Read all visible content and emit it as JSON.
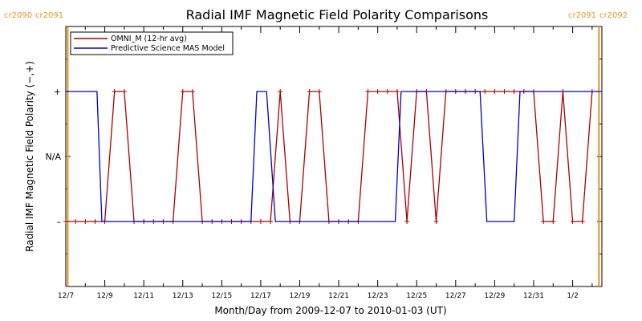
{
  "chart_data": {
    "type": "line",
    "title": "Radial IMF Magnetic Field Polarity Comparisons",
    "xlabel": "Month/Day from 2009-12-07 to 2010-01-03 (UT)",
    "ylabel": "Radial IMF Magnetic Field Polarity (−,+)",
    "xlim": [
      0,
      27.5
    ],
    "ylim": [
      -2,
      2
    ],
    "x_tick_values": [
      0,
      2,
      4,
      6,
      8,
      10,
      12,
      14,
      16,
      18,
      20,
      22,
      24,
      26
    ],
    "x_tick_labels": [
      "12/7",
      "12/9",
      "12/11",
      "12/13",
      "12/15",
      "12/17",
      "12/19",
      "12/21",
      "12/23",
      "12/25",
      "12/27",
      "12/29",
      "12/31",
      "1/2"
    ],
    "y_tick_values": [
      1,
      0,
      -1
    ],
    "y_tick_labels": [
      "+",
      "N/A",
      "–"
    ],
    "legend_placement": "top-left",
    "carrington_markers": [
      {
        "x": 0.1,
        "left": "cr2090",
        "right": "cr2091"
      },
      {
        "x": 27.35,
        "left": "cr2091",
        "right": "cr2092"
      }
    ],
    "series": [
      {
        "name": "OMNI_M (12-hr avg)",
        "color": "#aa0000",
        "marker": "plus",
        "x": [
          0,
          0.5,
          1,
          1.5,
          2,
          2.5,
          3,
          3.5,
          4,
          4.5,
          5,
          5.5,
          6,
          6.5,
          7,
          7.5,
          8,
          8.5,
          9,
          9.5,
          10,
          10.5,
          11,
          11.5,
          12,
          12.5,
          13,
          13.5,
          14,
          14.5,
          15,
          15.5,
          16,
          16.5,
          17,
          17.5,
          18,
          18.5,
          19,
          19.5,
          20,
          20.5,
          21,
          21.5,
          22,
          22.5,
          23,
          23.5,
          24,
          24.5,
          25,
          25.5,
          26,
          26.5,
          27
        ],
        "values": [
          -1,
          -1,
          -1,
          -1,
          -1,
          1,
          1,
          -1,
          -1,
          -1,
          -1,
          -1,
          1,
          1,
          -1,
          -1,
          -1,
          -1,
          -1,
          -1,
          -1,
          -1,
          1,
          -1,
          -1,
          1,
          1,
          -1,
          -1,
          -1,
          -1,
          1,
          1,
          1,
          1,
          -1,
          1,
          1,
          -1,
          1,
          1,
          1,
          1,
          1,
          1,
          1,
          1,
          1,
          1,
          -1,
          -1,
          1,
          -1,
          -1,
          1
        ]
      },
      {
        "name": "Predictive Science MAS Model",
        "color": "#0000cc",
        "marker": "none",
        "x": [
          0,
          1.6,
          1.85,
          9.5,
          9.8,
          10.3,
          10.75,
          11.05,
          16.9,
          17.2,
          21.25,
          21.6,
          23.0,
          23.3,
          27.5
        ],
        "values": [
          1,
          1,
          -1,
          -1,
          1,
          1,
          -1,
          -1,
          -1,
          1,
          1,
          -1,
          -1,
          1,
          1
        ]
      }
    ]
  }
}
